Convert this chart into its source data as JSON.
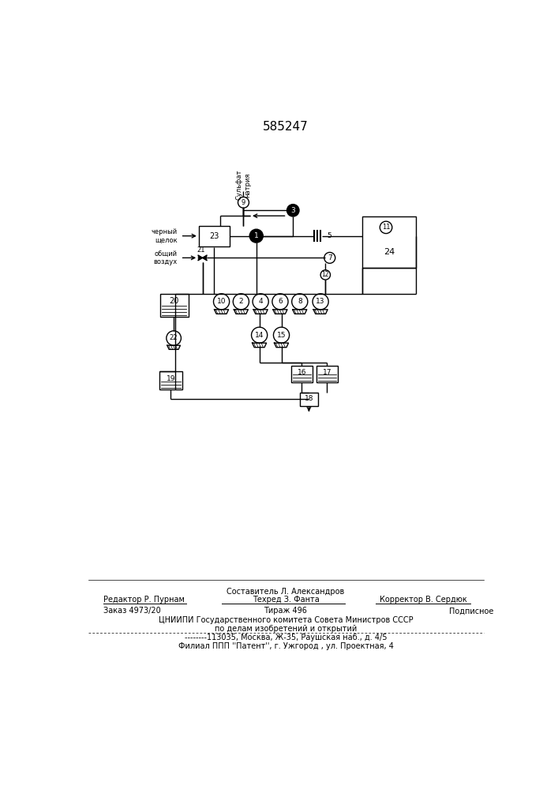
{
  "title_number": "585247",
  "bg_color": "#ffffff",
  "line_color": "#000000",
  "label_sulfat": "Сульфат\nнатрия",
  "label_cherny": "черный\nщелок",
  "label_obshiy": "общий\nвоздух",
  "footer_line0": "Составитель Л. Александров",
  "footer_line1_left": "Редактор Р. Пурнам",
  "footer_line1_mid": "Техред З. Фанта",
  "footer_line1_right": "Корректор В. Сердюк",
  "footer_line2_left": "Заказ 4973/20",
  "footer_line2_mid": "Тираж 496",
  "footer_line2_right": "Подписное",
  "footer_line3": "ЦНИИПИ Государственного комитета Совета Министров СССР",
  "footer_line4": "по делам изобретений и открытий",
  "footer_line5": "--------113035, Москва, Ж-35, Раушская наб., д. 4/5",
  "footer_line6": "Филиал ППП ''Патент'', г. Ужгород , ул. Проектная, 4"
}
